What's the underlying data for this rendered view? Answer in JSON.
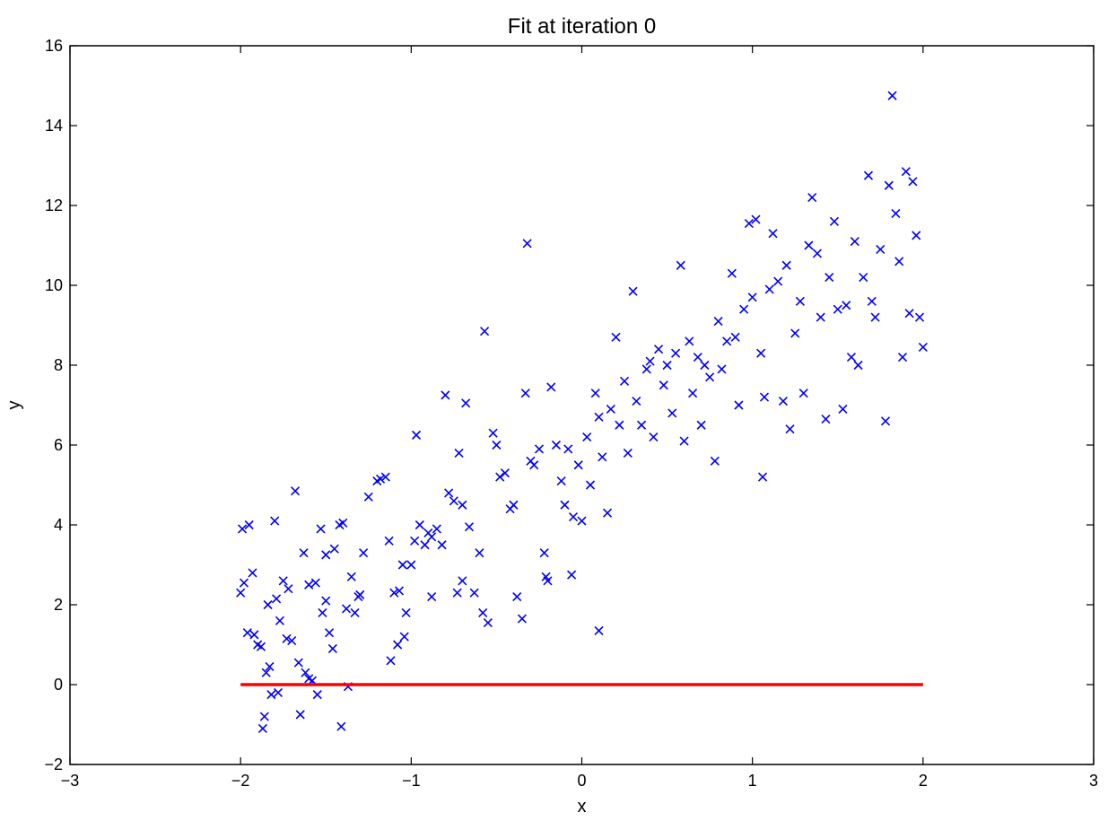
{
  "chart_data": {
    "type": "scatter",
    "title": "Fit at iteration 0",
    "xlabel": "x",
    "ylabel": "y",
    "xlim": [
      -3,
      3
    ],
    "ylim": [
      -2,
      16
    ],
    "xticks": [
      -3,
      -2,
      -1,
      0,
      1,
      2,
      3
    ],
    "yticks": [
      -2,
      0,
      2,
      4,
      6,
      8,
      10,
      12,
      14,
      16
    ],
    "xtick_labels": [
      "−3",
      "−2",
      "−1",
      "0",
      "1",
      "2",
      "3"
    ],
    "ytick_labels": [
      "−2",
      "0",
      "2",
      "4",
      "6",
      "8",
      "10",
      "12",
      "14",
      "16"
    ],
    "grid": false,
    "colors": {
      "points": "#0000ff",
      "fit_line": "#ff0000",
      "axes": "#000000"
    },
    "series": [
      {
        "kind": "scatter",
        "marker": "x",
        "points": [
          [
            -1.99,
            3.9
          ],
          [
            -1.95,
            4.0
          ],
          [
            -2.0,
            2.3
          ],
          [
            -1.98,
            2.55
          ],
          [
            -1.93,
            2.8
          ],
          [
            -1.96,
            1.3
          ],
          [
            -1.92,
            1.25
          ],
          [
            -1.9,
            1.0
          ],
          [
            -1.88,
            0.95
          ],
          [
            -1.85,
            0.3
          ],
          [
            -1.83,
            0.45
          ],
          [
            -1.86,
            -0.8
          ],
          [
            -1.87,
            -1.1
          ],
          [
            -1.82,
            -0.25
          ],
          [
            -1.78,
            -0.2
          ],
          [
            -1.8,
            4.1
          ],
          [
            -1.75,
            2.6
          ],
          [
            -1.77,
            1.6
          ],
          [
            -1.7,
            1.1
          ],
          [
            -1.73,
            1.15
          ],
          [
            -1.68,
            4.85
          ],
          [
            -1.66,
            0.55
          ],
          [
            -1.62,
            0.3
          ],
          [
            -1.6,
            0.15
          ],
          [
            -1.58,
            0.1
          ],
          [
            -1.65,
            -0.75
          ],
          [
            -1.55,
            -0.25
          ],
          [
            -1.63,
            3.3
          ],
          [
            -1.6,
            2.5
          ],
          [
            -1.56,
            2.55
          ],
          [
            -1.52,
            1.8
          ],
          [
            -1.5,
            2.1
          ],
          [
            -1.48,
            1.3
          ],
          [
            -1.53,
            3.9
          ],
          [
            -1.45,
            3.4
          ],
          [
            -1.42,
            4.0
          ],
          [
            -1.4,
            4.05
          ],
          [
            -1.38,
            1.9
          ],
          [
            -1.35,
            2.7
          ],
          [
            -1.46,
            0.9
          ],
          [
            -1.33,
            1.8
          ],
          [
            -1.31,
            2.2
          ],
          [
            -1.28,
            3.3
          ],
          [
            -1.25,
            4.7
          ],
          [
            -1.2,
            5.1
          ],
          [
            -1.41,
            -1.05
          ],
          [
            -1.37,
            -0.05
          ],
          [
            -1.18,
            5.15
          ],
          [
            -1.15,
            5.2
          ],
          [
            -1.13,
            3.6
          ],
          [
            -1.1,
            2.3
          ],
          [
            -1.07,
            2.35
          ],
          [
            -1.05,
            3.0
          ],
          [
            -1.03,
            1.8
          ],
          [
            -1.0,
            3.0
          ],
          [
            -0.98,
            3.6
          ],
          [
            -0.95,
            4.0
          ],
          [
            -1.08,
            1.0
          ],
          [
            -1.04,
            1.2
          ],
          [
            -0.97,
            6.25
          ],
          [
            -0.92,
            3.5
          ],
          [
            -0.9,
            3.8
          ],
          [
            -0.88,
            3.7
          ],
          [
            -0.85,
            3.9
          ],
          [
            -0.82,
            3.5
          ],
          [
            -1.12,
            0.6
          ],
          [
            -0.8,
            7.25
          ],
          [
            -0.78,
            4.8
          ],
          [
            -0.75,
            4.6
          ],
          [
            -0.72,
            5.8
          ],
          [
            -0.7,
            4.5
          ],
          [
            -0.68,
            7.05
          ],
          [
            -0.73,
            2.3
          ],
          [
            -0.66,
            3.95
          ],
          [
            -0.63,
            2.3
          ],
          [
            -0.6,
            3.3
          ],
          [
            -0.58,
            1.8
          ],
          [
            -0.55,
            1.55
          ],
          [
            -0.52,
            6.3
          ],
          [
            -0.5,
            6.0
          ],
          [
            -0.48,
            5.2
          ],
          [
            -0.45,
            5.3
          ],
          [
            -0.42,
            4.4
          ],
          [
            -0.4,
            4.5
          ],
          [
            -0.38,
            2.2
          ],
          [
            -0.35,
            1.65
          ],
          [
            -0.33,
            7.3
          ],
          [
            -0.3,
            5.6
          ],
          [
            -0.28,
            5.5
          ],
          [
            -0.25,
            5.9
          ],
          [
            -0.22,
            3.3
          ],
          [
            -0.2,
            2.6
          ],
          [
            -0.18,
            7.45
          ],
          [
            -0.15,
            6.0
          ],
          [
            -0.12,
            5.1
          ],
          [
            -0.1,
            4.5
          ],
          [
            -0.08,
            5.9
          ],
          [
            -0.57,
            8.85
          ],
          [
            -0.32,
            11.05
          ],
          [
            -0.05,
            4.2
          ],
          [
            -0.02,
            5.5
          ],
          [
            0.0,
            4.1
          ],
          [
            0.03,
            6.2
          ],
          [
            0.05,
            5.0
          ],
          [
            0.08,
            7.3
          ],
          [
            0.1,
            6.7
          ],
          [
            0.12,
            5.7
          ],
          [
            0.15,
            4.3
          ],
          [
            0.17,
            6.9
          ],
          [
            0.2,
            8.7
          ],
          [
            0.22,
            6.5
          ],
          [
            0.25,
            7.6
          ],
          [
            0.27,
            5.8
          ],
          [
            0.3,
            9.85
          ],
          [
            0.32,
            7.1
          ],
          [
            0.35,
            6.5
          ],
          [
            0.38,
            7.9
          ],
          [
            0.4,
            8.1
          ],
          [
            0.42,
            6.2
          ],
          [
            0.45,
            8.4
          ],
          [
            0.48,
            7.5
          ],
          [
            0.5,
            8.0
          ],
          [
            0.53,
            6.8
          ],
          [
            0.55,
            8.3
          ],
          [
            0.58,
            10.5
          ],
          [
            0.6,
            6.1
          ],
          [
            0.63,
            8.6
          ],
          [
            0.65,
            7.3
          ],
          [
            0.68,
            8.2
          ],
          [
            0.7,
            6.5
          ],
          [
            0.72,
            8.0
          ],
          [
            0.75,
            7.7
          ],
          [
            0.78,
            5.6
          ],
          [
            0.8,
            9.1
          ],
          [
            0.82,
            7.9
          ],
          [
            0.85,
            8.6
          ],
          [
            0.88,
            10.3
          ],
          [
            0.9,
            8.7
          ],
          [
            0.92,
            7.0
          ],
          [
            0.95,
            9.4
          ],
          [
            0.98,
            11.55
          ],
          [
            1.0,
            9.7
          ],
          [
            1.02,
            11.65
          ],
          [
            1.05,
            8.3
          ],
          [
            1.07,
            7.2
          ],
          [
            1.1,
            9.9
          ],
          [
            1.12,
            11.3
          ],
          [
            1.15,
            10.1
          ],
          [
            1.18,
            7.1
          ],
          [
            1.2,
            10.5
          ],
          [
            1.22,
            6.4
          ],
          [
            1.25,
            8.8
          ],
          [
            1.28,
            9.6
          ],
          [
            1.3,
            7.3
          ],
          [
            1.33,
            11.0
          ],
          [
            1.35,
            12.2
          ],
          [
            1.38,
            10.8
          ],
          [
            1.4,
            9.2
          ],
          [
            1.43,
            6.65
          ],
          [
            1.45,
            10.2
          ],
          [
            1.48,
            11.6
          ],
          [
            1.5,
            9.4
          ],
          [
            1.53,
            6.9
          ],
          [
            1.55,
            9.5
          ],
          [
            1.58,
            8.2
          ],
          [
            1.6,
            11.1
          ],
          [
            1.62,
            8.0
          ],
          [
            1.65,
            10.2
          ],
          [
            1.68,
            12.75
          ],
          [
            1.7,
            9.6
          ],
          [
            1.72,
            9.2
          ],
          [
            1.75,
            10.9
          ],
          [
            1.78,
            6.6
          ],
          [
            1.8,
            12.5
          ],
          [
            1.82,
            14.75
          ],
          [
            1.84,
            11.8
          ],
          [
            1.86,
            10.6
          ],
          [
            1.88,
            8.2
          ],
          [
            1.9,
            12.85
          ],
          [
            1.92,
            9.3
          ],
          [
            1.94,
            12.6
          ],
          [
            1.96,
            11.25
          ],
          [
            1.98,
            9.2
          ],
          [
            2.0,
            8.45
          ],
          [
            1.06,
            5.2
          ],
          [
            0.1,
            1.35
          ],
          [
            -0.06,
            2.75
          ],
          [
            -0.21,
            2.7
          ],
          [
            -0.7,
            2.6
          ],
          [
            -0.88,
            2.2
          ],
          [
            -1.3,
            2.25
          ],
          [
            -1.5,
            3.25
          ],
          [
            -1.72,
            2.4
          ],
          [
            -1.79,
            2.15
          ],
          [
            -1.84,
            2.0
          ]
        ]
      },
      {
        "kind": "line",
        "points": [
          [
            -2,
            0
          ],
          [
            2,
            0
          ]
        ]
      }
    ]
  }
}
